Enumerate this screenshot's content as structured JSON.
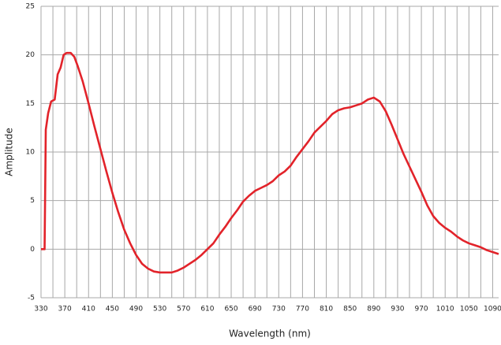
{
  "chart_data": {
    "type": "line",
    "x_label": "Wavelength (nm)",
    "y_label": "Amplitude",
    "x": [
      330,
      336,
      338,
      342,
      347,
      353,
      358,
      363,
      368,
      373,
      380,
      386,
      392,
      400,
      410,
      420,
      430,
      440,
      450,
      460,
      470,
      480,
      490,
      500,
      510,
      520,
      530,
      540,
      550,
      560,
      570,
      580,
      590,
      600,
      610,
      620,
      630,
      640,
      650,
      660,
      670,
      680,
      690,
      700,
      710,
      720,
      730,
      740,
      750,
      760,
      770,
      780,
      790,
      800,
      810,
      820,
      830,
      840,
      850,
      860,
      870,
      880,
      890,
      900,
      910,
      920,
      930,
      940,
      950,
      960,
      970,
      980,
      990,
      1000,
      1010,
      1020,
      1030,
      1040,
      1050,
      1060,
      1070,
      1080,
      1090,
      1100
    ],
    "values": [
      0,
      0,
      12.3,
      14,
      15.2,
      15.4,
      18,
      18.7,
      20,
      20.2,
      20.2,
      19.8,
      18.8,
      17.3,
      15,
      12.6,
      10.3,
      8,
      5.8,
      3.8,
      2,
      0.6,
      -0.6,
      -1.5,
      -2,
      -2.3,
      -2.4,
      -2.4,
      -2.4,
      -2.2,
      -1.9,
      -1.5,
      -1.1,
      -0.6,
      0,
      0.6,
      1.5,
      2.3,
      3.2,
      4,
      4.9,
      5.5,
      6,
      6.3,
      6.6,
      7,
      7.6,
      8,
      8.6,
      9.5,
      10.3,
      11.1,
      12,
      12.6,
      13.2,
      13.9,
      14.3,
      14.5,
      14.6,
      14.8,
      15,
      15.4,
      15.6,
      15.2,
      14.2,
      12.8,
      11.3,
      9.8,
      8.5,
      7.2,
      5.9,
      4.5,
      3.4,
      2.7,
      2.2,
      1.8,
      1.3,
      0.9,
      0.6,
      0.4,
      0.2,
      -0.1,
      -0.3,
      -0.5
    ],
    "color": "#e2232a",
    "xlim": [
      330,
      1100
    ],
    "xticks": [
      330,
      370,
      410,
      450,
      490,
      530,
      570,
      610,
      650,
      690,
      730,
      770,
      810,
      850,
      890,
      930,
      970,
      1010,
      1050,
      1090
    ],
    "xminorticks": [
      350,
      390,
      430,
      470,
      510,
      550,
      590,
      630,
      670,
      710,
      750,
      790,
      830,
      870,
      910,
      950,
      990,
      1030,
      1070
    ],
    "ylim": [
      -5,
      25
    ],
    "yticks": [
      -5,
      0,
      5,
      10,
      15,
      20,
      25
    ],
    "grid": true
  }
}
